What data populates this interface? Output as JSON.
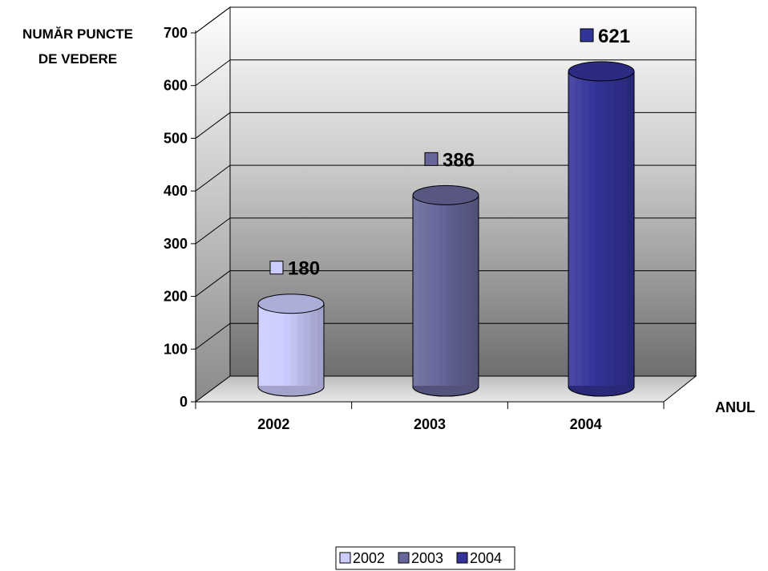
{
  "chart_data": {
    "type": "bar",
    "style": "3d-cylinder",
    "title": "",
    "ylabel_lines": [
      "NUMĂR PUNCTE",
      "DE VEDERE"
    ],
    "xlabel": "ANUL",
    "categories": [
      "2002",
      "2003",
      "2004"
    ],
    "series": [
      {
        "name": "2002",
        "category": "2002",
        "value": 180,
        "color": "#ccccff"
      },
      {
        "name": "2003",
        "category": "2003",
        "value": 386,
        "color": "#666699"
      },
      {
        "name": "2004",
        "category": "2004",
        "value": 621,
        "color": "#333399"
      }
    ],
    "ylim": [
      0,
      700
    ],
    "yticks": [
      0,
      100,
      200,
      300,
      400,
      500,
      600,
      700
    ],
    "grid": true,
    "legend_position": "bottom",
    "data_labels": true
  }
}
